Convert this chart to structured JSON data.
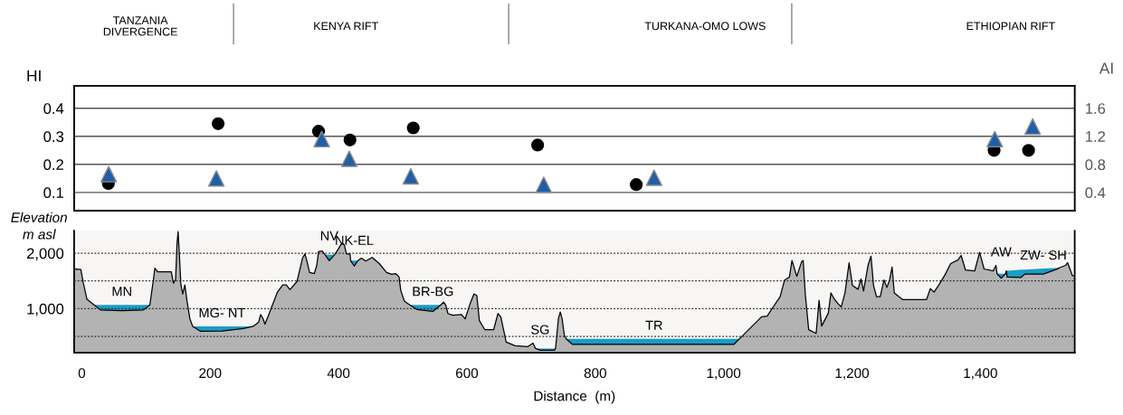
{
  "chart_data": [
    {
      "type": "scatter",
      "ylabel": "HI",
      "y2label": "AI",
      "xlim": [
        -12,
        1547
      ],
      "ylim": [
        0.035,
        0.48
      ],
      "yticks": [
        0.1,
        0.2,
        0.3,
        0.4
      ],
      "y2lim": [
        0.14,
        1.92
      ],
      "y2ticks": [
        0.4,
        0.8,
        1.2,
        1.6
      ],
      "grid": "y",
      "tick_labels": "y",
      "annotations": [
        "TANZANIA\nDIVERGENCE",
        "KENYA RIFT",
        "TURKANA-OMO LOWS",
        "ETHIOPIAN RIFT"
      ],
      "series": [
        {
          "color": "#000000",
          "marker": "circle",
          "x": [
            41.4,
            212.4,
            368.8,
            417.8,
            516.4,
            710.2,
            863.9,
            1421.4,
            1475.1
          ],
          "values": [
            0.132,
            0.345,
            0.318,
            0.287,
            0.33,
            0.269,
            0.128,
            0.25,
            0.25
          ]
        },
        {
          "color": "#1f5fa8",
          "marker": "triangle",
          "axis": "y2",
          "x": [
            41.9,
            209.6,
            373.8,
            416.7,
            512.5,
            719.7,
            891.6,
            1422.5,
            1481.5
          ],
          "values": [
            0.66,
            0.6,
            1.16,
            0.88,
            0.63,
            0.51,
            0.61,
            1.16,
            1.34
          ]
        }
      ]
    },
    {
      "type": "area",
      "xlabel": "Distance  (m)",
      "ylabel": "Elevation\nm asl",
      "xlim": [
        -12,
        1547
      ],
      "ylim": [
        204,
        2405
      ],
      "xticks": [
        0,
        200,
        400,
        600,
        800,
        {
          "value": 1000,
          "label": "1,000"
        },
        {
          "value": 1200,
          "label": "1,200"
        },
        {
          "value": 1400,
          "label": "1,400"
        }
      ],
      "yticks": [
        {
          "value": 500,
          "label": null
        },
        {
          "value": 1000,
          "label": "1,000"
        },
        {
          "value": 1500,
          "label": null
        },
        {
          "value": 2000,
          "label": "2,000"
        }
      ],
      "grid": "y",
      "x": [
        -12,
        -1.5,
        2.4,
        8.0,
        16.9,
        19.1,
        29.1,
        62.5,
        96.0,
        106.0,
        111.6,
        113.8,
        118.2,
        139.4,
        142.7,
        146.1,
        148.3,
        150.0,
        151.7,
        154.4,
        157.2,
        160.6,
        163.9,
        168.4,
        172.8,
        185.1,
        218.5,
        251.9,
        266.9,
        275.3,
        278.6,
        282.5,
        285.3,
        290.9,
        304.8,
        313.1,
        318.7,
        324.3,
        335.4,
        343.8,
        347.7,
        351.0,
        354.9,
        362.2,
        366.1,
        368.8,
        374.4,
        378.9,
        385.5,
        393.9,
        399.5,
        405.0,
        408.9,
        412.3,
        417.8,
        418.9,
        424.5,
        430.1,
        435.7,
        442.3,
        452.4,
        463.5,
        474.7,
        483.0,
        488.6,
        494.2,
        496.9,
        502.5,
        510.9,
        522.0,
        547.0,
        559.3,
        563.8,
        567.1,
        570.4,
        577.7,
        591.6,
        597.2,
        605.5,
        611.1,
        615.5,
        619.4,
        627.8,
        641.7,
        648.4,
        652.9,
        661.2,
        675.1,
        694.6,
        703.0,
        706.9,
        714.1,
        736.4,
        738.1,
        742.6,
        745.5,
        748.3,
        751.8,
        754.7,
        764.5,
        891.6,
        1015.8,
        1024.5,
        1041.8,
        1059.1,
        1067.8,
        1076.5,
        1088.0,
        1095.0,
        1102.5,
        1106.5,
        1114.0,
        1121.6,
        1123.9,
        1127.3,
        1132.5,
        1144.1,
        1148.7,
        1152.7,
        1163.1,
        1167.2,
        1171.8,
        1177.6,
        1183.3,
        1189.1,
        1195.5,
        1200.7,
        1209.4,
        1214.0,
        1218.0,
        1225.0,
        1229.6,
        1233.6,
        1238.2,
        1244.0,
        1249.8,
        1254.4,
        1258.5,
        1262.5,
        1265.9,
        1272.9,
        1278.7,
        1316.2,
        1322.0,
        1327.8,
        1336.5,
        1345.1,
        1353.8,
        1365.3,
        1370.0,
        1376.9,
        1391.3,
        1398.8,
        1405.8,
        1420.2,
        1424.3,
        1426.0,
        1432.4,
        1439.3,
        1440.5,
        1441.6,
        1463.5,
        1469.3,
        1498.2,
        1521.3,
        1522.5,
        1532.9,
        1535.8,
        1538.6,
        1543.3,
        1547
      ],
      "series": [
        {
          "color": "#b3b3b3",
          "values": [
            1717,
            1704,
            1459,
            1169,
            1086,
            1066,
            975,
            963,
            975,
            1066,
            1523,
            1729,
            1665,
            1665,
            1459,
            1523,
            2167,
            2392,
            2038,
            1427,
            1266,
            1427,
            1137,
            815,
            680,
            590,
            595,
            640,
            680,
            751,
            893,
            815,
            719,
            880,
            1298,
            1427,
            1427,
            1343,
            1491,
            1910,
            1987,
            1845,
            1652,
            1633,
            1781,
            2026,
            2038,
            1974,
            1865,
            1974,
            2071,
            2180,
            2154,
            1987,
            1987,
            1865,
            1768,
            1865,
            1910,
            1858,
            1923,
            1813,
            1652,
            1620,
            1633,
            1575,
            1330,
            1137,
            1066,
            985,
            950,
            1066,
            1118,
            1060,
            912,
            880,
            893,
            815,
            1105,
            1266,
            1234,
            783,
            622,
            622,
            912,
            847,
            397,
            332,
            313,
            377,
            281,
            249,
            249,
            281,
            819,
            938,
            819,
            520,
            454,
            354,
            355,
            354,
            454,
            653,
            852,
            865,
            1018,
            1217,
            1516,
            1569,
            1868,
            1582,
            1848,
            1868,
            1250,
            620,
            553,
            1151,
            686,
            918,
            1284,
            1184,
            1098,
            1031,
            1284,
            1828,
            1416,
            1350,
            1536,
            1317,
            1781,
            1947,
            1416,
            1217,
            1217,
            1516,
            1383,
            1516,
            1748,
            1284,
            1217,
            1164,
            1164,
            1363,
            1297,
            1449,
            1615,
            1814,
            1881,
            1960,
            1695,
            1682,
            2014,
            1715,
            1682,
            1781,
            1629,
            1549,
            1629,
            1682,
            1570,
            1563,
            1623,
            1623,
            1720,
            1735,
            1781,
            1828,
            1748,
            1595,
            1595
          ]
        },
        {
          "color": "#1b9cc6",
          "values": [
            null,
            null,
            null,
            null,
            null,
            1066,
            1066,
            1066,
            1066,
            1066,
            null,
            null,
            null,
            null,
            null,
            null,
            null,
            null,
            null,
            null,
            null,
            null,
            null,
            null,
            680,
            680,
            680,
            680,
            680,
            null,
            null,
            null,
            null,
            null,
            null,
            null,
            null,
            null,
            null,
            null,
            null,
            null,
            null,
            null,
            null,
            null,
            null,
            1974,
            1974,
            1974,
            null,
            null,
            null,
            null,
            null,
            1865,
            1865,
            1865,
            null,
            null,
            null,
            null,
            null,
            null,
            null,
            null,
            null,
            null,
            1066,
            1066,
            1066,
            1066,
            null,
            null,
            null,
            null,
            null,
            null,
            null,
            null,
            null,
            null,
            null,
            null,
            null,
            null,
            null,
            null,
            null,
            null,
            281,
            281,
            281,
            281,
            null,
            null,
            null,
            null,
            454,
            454,
            454,
            454,
            454,
            null,
            null,
            null,
            null,
            null,
            null,
            null,
            null,
            null,
            null,
            null,
            null,
            null,
            null,
            null,
            null,
            null,
            null,
            null,
            null,
            null,
            null,
            null,
            null,
            null,
            null,
            null,
            null,
            null,
            null,
            null,
            null,
            null,
            null,
            null,
            null,
            null,
            null,
            null,
            null,
            null,
            null,
            null,
            null,
            null,
            null,
            null,
            null,
            null,
            null,
            null,
            null,
            null,
            1629,
            1629,
            1629,
            1682,
            1682,
            1702,
            1702,
            1722,
            1735,
            1735,
            null,
            null,
            null,
            null,
            null
          ]
        }
      ],
      "annotations": [
        {
          "text": "MN",
          "x": 62.5,
          "y": 1066
        },
        {
          "text": "MG- NT",
          "x": 218.5,
          "y": 680
        },
        {
          "text": "NV",
          "x": 385.5,
          "y": 1974
        },
        {
          "text": "NK-EL",
          "x": 424.5,
          "y": 1865
        },
        {
          "text": "BR-BG",
          "x": 547.0,
          "y": 1066
        },
        {
          "text": "SG",
          "x": 714.1,
          "y": 281
        },
        {
          "text": "TR",
          "x": 891.6,
          "y": 454
        },
        {
          "text": "AW",
          "x": 1432.4,
          "y": 1629
        },
        {
          "text": "ZW- SH",
          "x": 1498.2,
          "y": 1722
        }
      ]
    }
  ]
}
